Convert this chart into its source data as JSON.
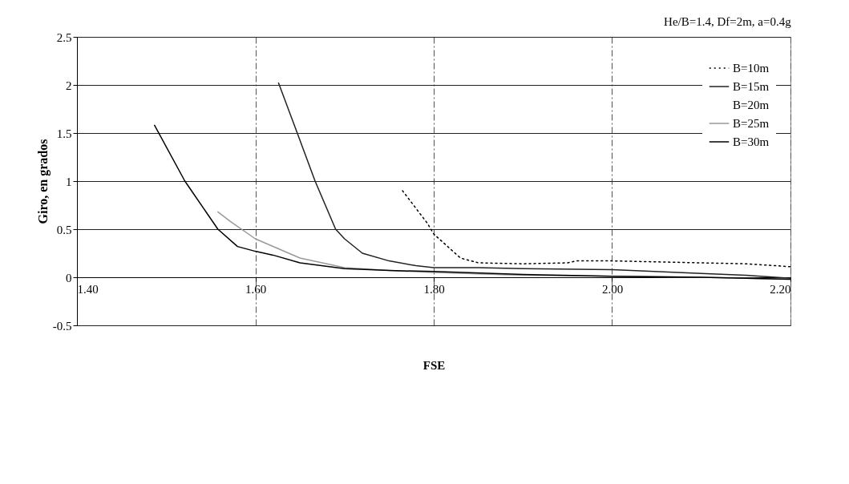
{
  "chart_data": {
    "type": "line",
    "xlabel": "FSE",
    "ylabel": "Giro, en grados",
    "annotations": [
      "He/B=1.4, Df=2m, a=0.4g"
    ],
    "series": [
      {
        "name": "B=10m",
        "color": "#000000",
        "line_style": "dotted",
        "x": [
          1.765,
          1.793,
          1.8,
          1.83,
          1.85,
          1.9,
          1.95,
          1.96,
          2.0,
          2.05,
          2.1,
          2.15,
          2.2
        ],
        "values": [
          0.9,
          0.56,
          0.45,
          0.2,
          0.15,
          0.14,
          0.15,
          0.17,
          0.17,
          0.16,
          0.15,
          0.14,
          0.11
        ]
      },
      {
        "name": "B=15m",
        "color": "#222222",
        "line_style": "solid",
        "x": [
          1.626,
          1.647,
          1.667,
          1.69,
          1.7,
          1.72,
          1.75,
          1.78,
          1.8,
          1.85,
          1.9,
          2.0,
          2.1,
          2.15,
          2.2
        ],
        "values": [
          2.02,
          1.5,
          1.0,
          0.5,
          0.4,
          0.25,
          0.17,
          0.12,
          0.1,
          0.1,
          0.09,
          0.08,
          0.04,
          0.02,
          -0.01
        ]
      },
      {
        "name": "B=20m"
      },
      {
        "name": "B=25m",
        "color": "#999999",
        "line_style": "solid",
        "x": [
          1.558,
          1.572,
          1.6,
          1.65,
          1.7,
          1.75,
          1.8,
          1.9,
          2.0,
          2.1,
          2.2
        ],
        "values": [
          0.68,
          0.58,
          0.4,
          0.2,
          0.1,
          0.07,
          0.05,
          0.02,
          0.01,
          0.0,
          -0.02
        ]
      },
      {
        "name": "B=30m",
        "color": "#000000",
        "line_style": "solid",
        "x": [
          1.487,
          1.521,
          1.558,
          1.58,
          1.6,
          1.62,
          1.65,
          1.7,
          1.75,
          1.8,
          1.9,
          2.0,
          2.1,
          2.2
        ],
        "values": [
          1.58,
          1.0,
          0.5,
          0.32,
          0.27,
          0.23,
          0.15,
          0.09,
          0.07,
          0.06,
          0.03,
          0.01,
          0.0,
          -0.02
        ]
      }
    ],
    "xlim": [
      1.4,
      2.2
    ],
    "xticks": [
      {
        "value": 1.4,
        "label": "1.40"
      },
      {
        "value": 1.6,
        "label": "1.60"
      },
      {
        "value": 1.8,
        "label": "1.80"
      },
      {
        "value": 2.0,
        "label": "2.00"
      },
      {
        "value": 2.2,
        "label": "2.20"
      }
    ],
    "ylim": [
      -0.5,
      2.5
    ],
    "yticks": [
      -0.5,
      0,
      0.5,
      1,
      1.5,
      2,
      2.5
    ],
    "grid": true,
    "legend": "top right"
  }
}
